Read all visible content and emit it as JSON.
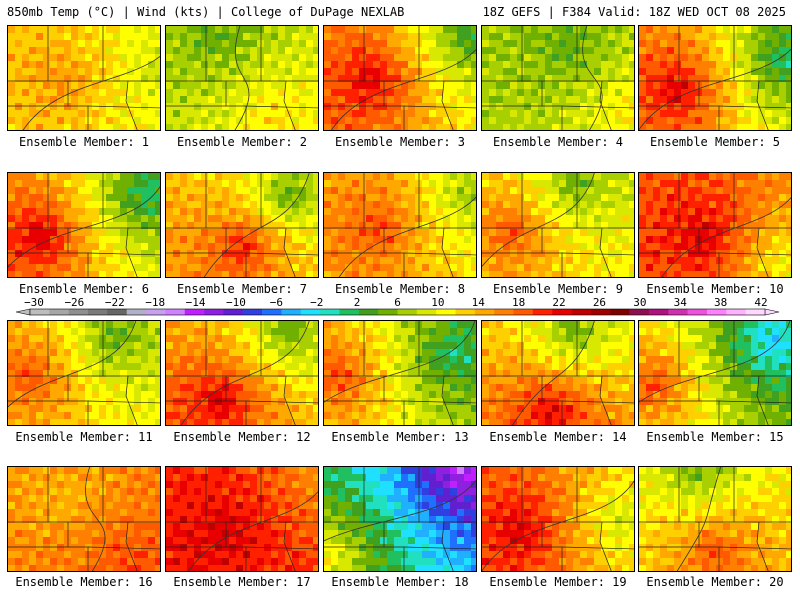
{
  "header": {
    "left": "850mb Temp (°C) | Wind (kts) | College of DuPage NEXLAB",
    "right": "18Z GEFS | F384 Valid: 18Z WED OCT 08 2025"
  },
  "label_prefix": "Ensemble Member:",
  "members": [
    {
      "label": "Ensemble Member: 1",
      "number": "1",
      "warm_center": [
        0.35,
        0.5
      ],
      "cool_center": [
        1.0,
        0.4
      ],
      "warm": 18,
      "cool": 10
    },
    {
      "label": "Ensemble Member: 2",
      "number": "2",
      "warm_center": [
        0.7,
        0.85
      ],
      "cool_center": [
        0.35,
        0.1
      ],
      "warm": 15,
      "cool": 6
    },
    {
      "label": "Ensemble Member: 3",
      "number": "3",
      "warm_center": [
        0.3,
        0.5
      ],
      "cool_center": [
        0.95,
        0.1
      ],
      "warm": 26,
      "cool": 4
    },
    {
      "label": "Ensemble Member: 4",
      "number": "4",
      "warm_center": [
        0.95,
        0.8
      ],
      "cool_center": [
        0.55,
        0.2
      ],
      "warm": 14,
      "cool": 6
    },
    {
      "label": "Ensemble Member: 5",
      "number": "5",
      "warm_center": [
        0.25,
        0.6
      ],
      "cool_center": [
        0.95,
        0.3
      ],
      "warm": 26,
      "cool": 2
    },
    {
      "label": "Ensemble Member: 6",
      "number": "6",
      "warm_center": [
        0.2,
        0.6
      ],
      "cool_center": [
        0.9,
        0.2
      ],
      "warm": 26,
      "cool": 2
    },
    {
      "label": "Ensemble Member: 7",
      "number": "7",
      "warm_center": [
        0.5,
        0.7
      ],
      "cool_center": [
        0.8,
        0.2
      ],
      "warm": 24,
      "cool": 6
    },
    {
      "label": "Ensemble Member: 8",
      "number": "8",
      "warm_center": [
        0.35,
        0.5
      ],
      "cool_center": [
        0.95,
        0.2
      ],
      "warm": 22,
      "cool": 8
    },
    {
      "label": "Ensemble Member: 9",
      "number": "9",
      "warm_center": [
        0.2,
        0.55
      ],
      "cool_center": [
        0.6,
        0.1
      ],
      "warm": 22,
      "cool": 6
    },
    {
      "label": "Ensemble Member: 10",
      "number": "10",
      "warm_center": [
        0.4,
        0.6
      ],
      "cool_center": [
        0.95,
        0.85
      ],
      "warm": 26,
      "cool": 12
    },
    {
      "label": "Ensemble Member: 11",
      "number": "11",
      "warm_center": [
        0.15,
        0.5
      ],
      "cool_center": [
        0.7,
        0.15
      ],
      "warm": 22,
      "cool": 6
    },
    {
      "label": "Ensemble Member: 12",
      "number": "12",
      "warm_center": [
        0.35,
        0.75
      ],
      "cool_center": [
        0.8,
        0.1
      ],
      "warm": 26,
      "cool": 6
    },
    {
      "label": "Ensemble Member: 13",
      "number": "13",
      "warm_center": [
        0.1,
        0.5
      ],
      "cool_center": [
        0.85,
        0.3
      ],
      "warm": 22,
      "cool": 2
    },
    {
      "label": "Ensemble Member: 14",
      "number": "14",
      "warm_center": [
        0.45,
        0.85
      ],
      "cool_center": [
        0.6,
        0.1
      ],
      "warm": 26,
      "cool": 6
    },
    {
      "label": "Ensemble Member: 15",
      "number": "15",
      "warm_center": [
        0.1,
        0.6
      ],
      "cool_center": [
        0.85,
        0.2
      ],
      "warm": 22,
      "cool": -2
    },
    {
      "label": "Ensemble Member: 16",
      "number": "16",
      "warm_center": [
        0.8,
        0.9
      ],
      "cool_center": [
        0.4,
        0.3
      ],
      "warm": 22,
      "cool": 16
    },
    {
      "label": "Ensemble Member: 17",
      "number": "17",
      "warm_center": [
        0.4,
        0.6
      ],
      "cool_center": [
        0.95,
        0.1
      ],
      "warm": 26,
      "cool": 18
    },
    {
      "label": "Ensemble Member: 18",
      "number": "18",
      "warm_center": [
        0.0,
        0.85
      ],
      "cool_center": [
        0.9,
        0.0
      ],
      "warm": 14,
      "cool": -14
    },
    {
      "label": "Ensemble Member: 19",
      "number": "19",
      "warm_center": [
        0.25,
        0.6
      ],
      "cool_center": [
        0.9,
        0.5
      ],
      "warm": 26,
      "cool": 10
    },
    {
      "label": "Ensemble Member: 20",
      "number": "20",
      "warm_center": [
        0.5,
        0.8
      ],
      "cool_center": [
        0.4,
        0.0
      ],
      "warm": 22,
      "cool": 6
    }
  ],
  "colorbar": {
    "labels": [
      "-30",
      "-26",
      "-22",
      "-18",
      "-14",
      "-10",
      "-6",
      "-2",
      "2",
      "6",
      "10",
      "14",
      "18",
      "22",
      "26",
      "30",
      "34",
      "38",
      "42"
    ],
    "colors": [
      "#bdbdbd",
      "#a6a6a6",
      "#8f8f8f",
      "#7a7a7a",
      "#666666",
      "#b0b0c8",
      "#c8a0f0",
      "#d080ff",
      "#c020ff",
      "#9020e0",
      "#6020d0",
      "#3040e0",
      "#2070ff",
      "#20b0ff",
      "#20e0ff",
      "#20e0c0",
      "#20c060",
      "#40a020",
      "#70b000",
      "#a8d000",
      "#d8e800",
      "#ffff00",
      "#ffd000",
      "#ffa800",
      "#ff8000",
      "#ff5a00",
      "#ff2000",
      "#e80000",
      "#c00000",
      "#a00000",
      "#800000",
      "#8c1050",
      "#b01080",
      "#d030b0",
      "#f050e0",
      "#ff80ff",
      "#ffb0ff",
      "#ffd8ff"
    ]
  },
  "scale": {
    "min": -30,
    "max": 42,
    "step": 2,
    "colors": [
      "#bdbdbd",
      "#a6a6a6",
      "#8f8f8f",
      "#7a7a7a",
      "#666666",
      "#b0b0c8",
      "#c8a0f0",
      "#d080ff",
      "#c020ff",
      "#9020e0",
      "#6020d0",
      "#3040e0",
      "#2070ff",
      "#20b0ff",
      "#20e0ff",
      "#20e0c0",
      "#20c060",
      "#40a020",
      "#70b000",
      "#a8d000",
      "#d8e800",
      "#ffff00",
      "#ffd000",
      "#ffa800",
      "#ff8000",
      "#ff5a00",
      "#ff2000",
      "#e80000",
      "#c00000",
      "#a00000",
      "#800000",
      "#8c1050",
      "#b01080",
      "#d030b0",
      "#f050e0",
      "#ff80ff",
      "#ffb0ff",
      "#ffd8ff"
    ]
  }
}
